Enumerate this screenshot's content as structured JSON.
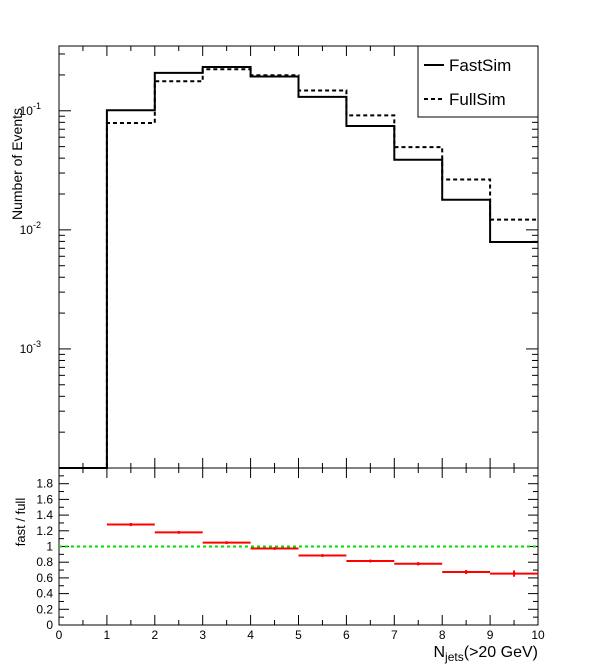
{
  "chart_data": [
    {
      "type": "histogram-step",
      "panel": "main",
      "ylabel": "Number of Events",
      "yscale": "log",
      "ylim": [
        0.0001,
        0.35
      ],
      "xlim": [
        0,
        10
      ],
      "bin_edges": [
        0,
        1,
        2,
        3,
        4,
        5,
        6,
        7,
        8,
        9,
        10
      ],
      "y_tick_labels": [
        {
          "base": "10",
          "exp": "-1",
          "value": 0.1
        },
        {
          "base": "10",
          "exp": "-2",
          "value": 0.01
        },
        {
          "base": "10",
          "exp": "-3",
          "value": 0.001
        }
      ],
      "series": [
        {
          "name": "FastSim",
          "style": "solid",
          "color": "#000000",
          "values": [
            0.0001,
            0.101,
            0.208,
            0.233,
            0.194,
            0.131,
            0.0745,
            0.0388,
            0.0179,
            0.0079
          ]
        },
        {
          "name": "FullSim",
          "style": "dashed",
          "color": "#000000",
          "values": [
            0.0001,
            0.079,
            0.177,
            0.223,
            0.199,
            0.148,
            0.0915,
            0.0495,
            0.0265,
            0.0122
          ]
        }
      ],
      "legend": {
        "position": "top-right",
        "entries": [
          "FastSim",
          "FullSim"
        ]
      }
    },
    {
      "type": "scatter-errorbar",
      "panel": "ratio",
      "ylabel": "fast / full",
      "xlabel_main": "N",
      "xlabel_sub": "jets",
      "xlabel_suffix": "(>20 GeV)",
      "ylim": [
        0,
        2
      ],
      "xlim": [
        0,
        10
      ],
      "x_ticks": [
        "0",
        "1",
        "2",
        "3",
        "4",
        "5",
        "6",
        "7",
        "8",
        "9",
        "10"
      ],
      "y_ticks": [
        "0",
        "0.2",
        "0.4",
        "0.6",
        "0.8",
        "1",
        "1.2",
        "1.4",
        "1.6",
        "1.8"
      ],
      "reference_line": {
        "value": 1.0,
        "color": "#00dd00",
        "style": "dotted"
      },
      "marker_color": "#ff0000",
      "points": [
        {
          "x": 1.5,
          "y": 1.28,
          "err": 0.02
        },
        {
          "x": 2.5,
          "y": 1.18,
          "err": 0.01
        },
        {
          "x": 3.5,
          "y": 1.05,
          "err": 0.01
        },
        {
          "x": 4.5,
          "y": 0.975,
          "err": 0.01
        },
        {
          "x": 5.5,
          "y": 0.885,
          "err": 0.01
        },
        {
          "x": 6.5,
          "y": 0.815,
          "err": 0.015
        },
        {
          "x": 7.5,
          "y": 0.78,
          "err": 0.02
        },
        {
          "x": 8.5,
          "y": 0.675,
          "err": 0.025
        },
        {
          "x": 9.5,
          "y": 0.655,
          "err": 0.04
        }
      ]
    }
  ]
}
